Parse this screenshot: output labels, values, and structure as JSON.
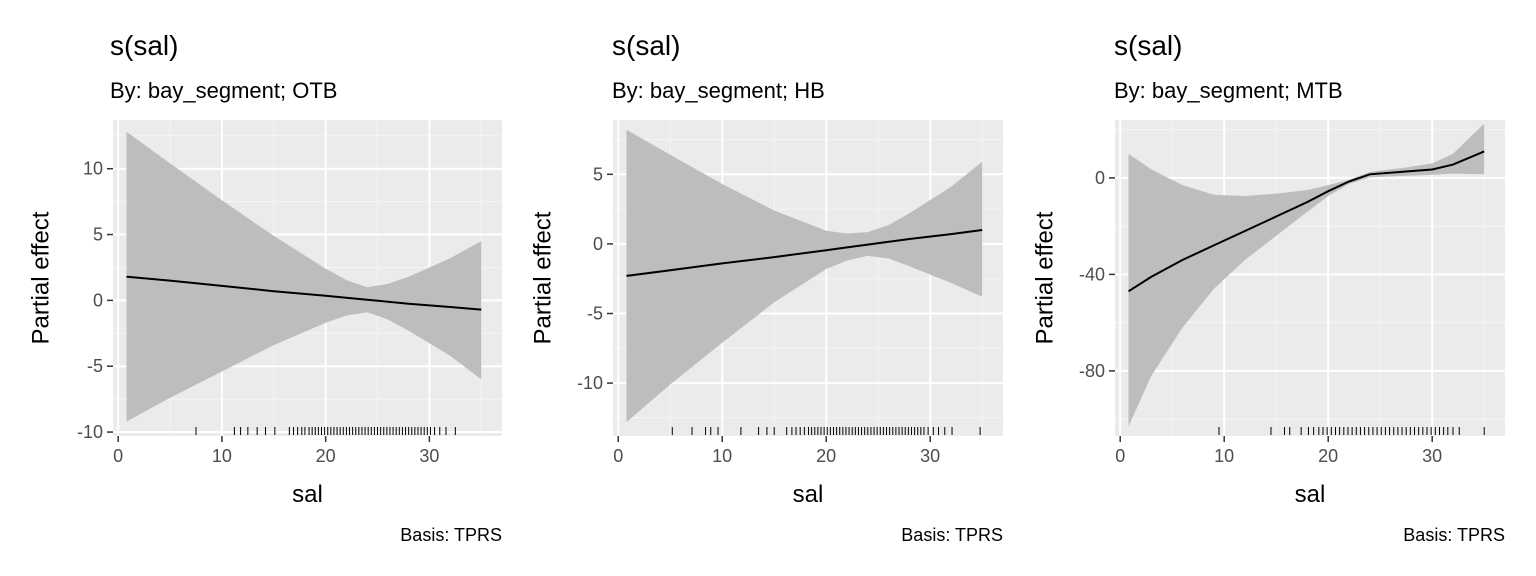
{
  "chart_data": [
    {
      "type": "line",
      "title": "s(sal)",
      "subtitle": "By: bay_segment; OTB",
      "caption": "Basis: TPRS",
      "xlabel": "sal",
      "ylabel": "Partial effect",
      "xlim": [
        -0.5,
        37
      ],
      "ylim": [
        -10.3,
        13.7
      ],
      "xticks": [
        0,
        10,
        20,
        30
      ],
      "yticks": [
        -10,
        -5,
        0,
        5,
        10
      ],
      "grid": true,
      "series": [
        {
          "x": [
            0.8,
            5,
            10,
            15,
            20,
            22,
            24,
            26,
            28,
            32,
            35
          ],
          "y": [
            1.8,
            1.5,
            1.1,
            0.7,
            0.35,
            0.2,
            0.05,
            -0.1,
            -0.25,
            -0.5,
            -0.7
          ],
          "lower": [
            -9.2,
            -7.4,
            -5.4,
            -3.4,
            -1.7,
            -1.15,
            -0.9,
            -1.45,
            -2.3,
            -4.2,
            -6.0
          ],
          "upper": [
            12.8,
            10.4,
            7.6,
            4.9,
            2.4,
            1.55,
            1.0,
            1.25,
            1.8,
            3.2,
            4.5
          ]
        }
      ],
      "rug": [
        7.5,
        11.2,
        11.8,
        12.5,
        13.4,
        14.2,
        15.1,
        16.5,
        16.9,
        17.3,
        17.7,
        18.0,
        18.4,
        18.7,
        19.0,
        19.3,
        19.6,
        19.9,
        20.2,
        20.5,
        20.8,
        21.1,
        21.4,
        21.7,
        22.0,
        22.3,
        22.6,
        22.9,
        23.2,
        23.5,
        23.8,
        24.1,
        24.4,
        24.7,
        25.0,
        25.3,
        25.6,
        25.9,
        26.2,
        26.5,
        26.8,
        27.1,
        27.4,
        27.7,
        28.0,
        28.3,
        28.6,
        28.9,
        29.2,
        29.5,
        29.8,
        30.1,
        30.5,
        31.0,
        31.6,
        32.5
      ]
    },
    {
      "type": "line",
      "title": "s(sal)",
      "subtitle": "By: bay_segment; HB",
      "caption": "Basis: TPRS",
      "xlabel": "sal",
      "ylabel": "Partial effect",
      "xlim": [
        -0.5,
        37
      ],
      "ylim": [
        -13.8,
        8.9
      ],
      "xticks": [
        0,
        10,
        20,
        30
      ],
      "yticks": [
        -10,
        -5,
        0,
        5
      ],
      "grid": true,
      "series": [
        {
          "x": [
            0.8,
            5,
            10,
            15,
            20,
            22,
            24,
            26,
            28,
            32,
            35
          ],
          "y": [
            -2.3,
            -1.9,
            -1.4,
            -0.95,
            -0.45,
            -0.25,
            -0.05,
            0.15,
            0.35,
            0.7,
            1.0
          ],
          "lower": [
            -12.8,
            -10.1,
            -7.1,
            -4.2,
            -1.8,
            -1.2,
            -0.85,
            -1.05,
            -1.6,
            -2.8,
            -3.8
          ],
          "upper": [
            8.2,
            6.4,
            4.3,
            2.4,
            0.95,
            0.75,
            0.85,
            1.35,
            2.2,
            4.1,
            5.9
          ]
        }
      ],
      "rug": [
        5.2,
        7.1,
        8.4,
        8.9,
        9.6,
        11.8,
        13.5,
        14.3,
        15.0,
        16.2,
        16.7,
        17.1,
        17.5,
        17.9,
        18.3,
        18.6,
        18.9,
        19.2,
        19.5,
        19.8,
        20.1,
        20.4,
        20.7,
        21.0,
        21.3,
        21.6,
        21.9,
        22.2,
        22.5,
        22.8,
        23.1,
        23.4,
        23.7,
        24.0,
        24.3,
        24.6,
        24.9,
        25.2,
        25.5,
        25.8,
        26.1,
        26.4,
        26.7,
        27.0,
        27.3,
        27.6,
        27.9,
        28.2,
        28.5,
        28.8,
        29.1,
        29.4,
        29.8,
        30.3,
        30.8,
        31.4,
        32.1,
        34.8
      ]
    },
    {
      "type": "line",
      "title": "s(sal)",
      "subtitle": "By: bay_segment; MTB",
      "caption": "Basis: TPRS",
      "xlabel": "sal",
      "ylabel": "Partial effect",
      "xlim": [
        -0.5,
        37
      ],
      "ylim": [
        -107,
        24
      ],
      "xticks": [
        0,
        10,
        20,
        30
      ],
      "yticks": [
        -80,
        -40,
        0
      ],
      "grid": true,
      "series": [
        {
          "x": [
            0.8,
            3,
            6,
            9,
            12,
            15,
            18,
            20,
            22,
            24,
            27,
            30,
            32,
            35
          ],
          "y": [
            -47,
            -41,
            -34,
            -28,
            -22,
            -16,
            -10,
            -5.5,
            -1.5,
            1.5,
            2.5,
            3.5,
            5.5,
            11
          ],
          "lower": [
            -103,
            -82,
            -62,
            -46,
            -34,
            -24,
            -14,
            -7.5,
            -2.5,
            0.2,
            0.8,
            1.3,
            1.8,
            1.5
          ],
          "upper": [
            10,
            3.5,
            -3,
            -7,
            -7.5,
            -6.5,
            -5,
            -3,
            -0.8,
            2.5,
            4,
            6,
            10,
            22.5
          ]
        }
      ],
      "rug": [
        9.5,
        14.5,
        15.8,
        16.3,
        17.4,
        18.1,
        18.6,
        19.1,
        19.5,
        19.9,
        20.3,
        20.7,
        21.1,
        21.5,
        21.9,
        22.3,
        22.7,
        23.1,
        23.5,
        23.9,
        24.3,
        24.7,
        25.1,
        25.5,
        25.9,
        26.3,
        26.7,
        27.1,
        27.5,
        27.9,
        28.3,
        28.7,
        29.1,
        29.5,
        29.9,
        30.3,
        30.7,
        31.1,
        31.5,
        32.0,
        32.6,
        35.0
      ]
    }
  ]
}
